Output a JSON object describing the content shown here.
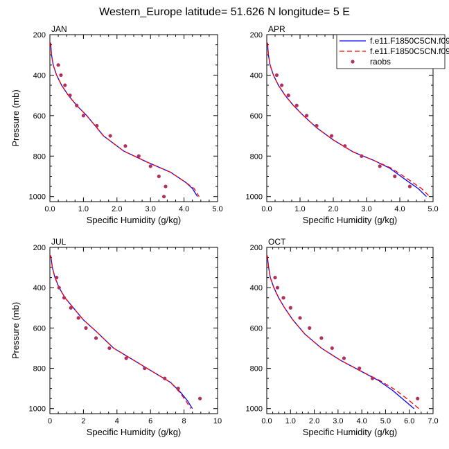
{
  "figure": {
    "title": "Western_Europe  latitude= 51.626 N longitude= 5 E"
  },
  "legend": {
    "entries": [
      {
        "name": "f.e11.F1850C5CN.f09",
        "color": "#0000ff",
        "dash": "solid",
        "marker": "none"
      },
      {
        "name": "f.e11.F1850C5CN.f09",
        "color": "#ff0000",
        "dash": "dashed",
        "marker": "none"
      },
      {
        "name": "raobs",
        "color": "#b03060",
        "dash": "none",
        "marker": "dot"
      }
    ]
  },
  "chart_data": [
    {
      "type": "line",
      "panel_label": "JAN",
      "xlabel": "Specific Humidity (g/kg)",
      "ylabel": "Pressure (mb)",
      "xlim": [
        0,
        5
      ],
      "ylim": [
        200,
        1025
      ],
      "y_inverted": true,
      "x_ticks": [
        "0.0",
        "1.0",
        "2.0",
        "3.0",
        "4.0",
        "5.0"
      ],
      "y_ticks": [
        "200",
        "400",
        "600",
        "800",
        "1000"
      ],
      "series": [
        {
          "color": "#0000ff",
          "dash": "solid",
          "x": [
            0.02,
            0.05,
            0.1,
            0.2,
            0.35,
            0.55,
            0.8,
            1.1,
            1.6,
            2.2,
            2.9,
            3.6,
            4.05,
            4.25,
            4.4
          ],
          "y": [
            240,
            300,
            350,
            400,
            450,
            500,
            550,
            600,
            700,
            775,
            830,
            880,
            930,
            960,
            1000
          ]
        },
        {
          "color": "#ff0000",
          "dash": "dashed",
          "x": [
            0.02,
            0.05,
            0.1,
            0.2,
            0.35,
            0.55,
            0.8,
            1.1,
            1.6,
            2.2,
            2.9,
            3.6,
            4.05,
            4.3,
            4.45
          ],
          "y": [
            240,
            300,
            350,
            400,
            450,
            500,
            550,
            600,
            700,
            775,
            830,
            880,
            930,
            960,
            1000
          ]
        },
        {
          "color": "#b03060",
          "dash": "none",
          "marker": "dot",
          "x": [
            0.25,
            0.33,
            0.45,
            0.6,
            0.8,
            1.0,
            1.4,
            1.8,
            2.25,
            2.65,
            3.0,
            3.25,
            3.45,
            3.4
          ],
          "y": [
            350,
            400,
            450,
            500,
            550,
            600,
            650,
            700,
            750,
            800,
            850,
            900,
            950,
            1000
          ]
        }
      ]
    },
    {
      "type": "line",
      "panel_label": "APR",
      "xlabel": "Specific Humidity (g/kg)",
      "ylabel": "",
      "xlim": [
        0,
        5
      ],
      "ylim": [
        200,
        1025
      ],
      "y_inverted": true,
      "x_ticks": [
        "0.0",
        "1.0",
        "2.0",
        "3.0",
        "4.0",
        "5.0"
      ],
      "y_ticks": [
        "200",
        "400",
        "600",
        "800",
        "1000"
      ],
      "series": [
        {
          "color": "#0000ff",
          "dash": "solid",
          "x": [
            0.02,
            0.05,
            0.1,
            0.2,
            0.35,
            0.55,
            0.8,
            1.1,
            1.5,
            2.0,
            2.6,
            3.2,
            3.7,
            4.2,
            4.55,
            4.8
          ],
          "y": [
            240,
            300,
            350,
            400,
            450,
            500,
            550,
            600,
            660,
            720,
            780,
            820,
            860,
            920,
            960,
            1000
          ]
        },
        {
          "color": "#ff0000",
          "dash": "dashed",
          "x": [
            0.02,
            0.05,
            0.1,
            0.2,
            0.35,
            0.55,
            0.8,
            1.1,
            1.5,
            2.0,
            2.6,
            3.2,
            3.75,
            4.3,
            4.65,
            4.9
          ],
          "y": [
            240,
            300,
            350,
            400,
            450,
            500,
            550,
            600,
            660,
            720,
            780,
            820,
            860,
            920,
            960,
            1000
          ]
        },
        {
          "color": "#b03060",
          "dash": "none",
          "marker": "dot",
          "x": [
            0.3,
            0.45,
            0.65,
            0.9,
            1.2,
            1.5,
            1.95,
            2.35,
            2.85,
            3.4,
            3.85,
            4.3
          ],
          "y": [
            400,
            450,
            500,
            550,
            600,
            650,
            700,
            750,
            800,
            850,
            900,
            950
          ]
        }
      ]
    },
    {
      "type": "line",
      "panel_label": "JUL",
      "xlabel": "Specific Humidity (g/kg)",
      "ylabel": "Pressure (mb)",
      "xlim": [
        0,
        10
      ],
      "ylim": [
        200,
        1025
      ],
      "y_inverted": true,
      "x_ticks": [
        "0",
        "2",
        "4",
        "6",
        "8",
        "10"
      ],
      "y_ticks": [
        "200",
        "400",
        "600",
        "800",
        "1000"
      ],
      "series": [
        {
          "color": "#0000ff",
          "dash": "solid",
          "x": [
            0.05,
            0.15,
            0.3,
            0.55,
            0.9,
            1.4,
            2.0,
            2.8,
            3.8,
            5.0,
            6.2,
            7.2,
            7.8,
            8.2,
            8.5
          ],
          "y": [
            240,
            300,
            350,
            400,
            450,
            500,
            560,
            620,
            700,
            760,
            820,
            870,
            920,
            960,
            1000
          ]
        },
        {
          "color": "#ff0000",
          "dash": "dashed",
          "x": [
            0.05,
            0.15,
            0.3,
            0.55,
            0.9,
            1.4,
            2.0,
            2.8,
            3.8,
            5.0,
            6.2,
            7.2,
            7.75,
            8.1,
            8.4
          ],
          "y": [
            240,
            300,
            350,
            400,
            450,
            500,
            560,
            620,
            700,
            760,
            820,
            870,
            920,
            960,
            1000
          ]
        },
        {
          "color": "#b03060",
          "dash": "none",
          "marker": "dot",
          "x": [
            0.4,
            0.55,
            0.85,
            1.25,
            1.7,
            2.15,
            2.75,
            3.55,
            4.55,
            5.65,
            6.85,
            7.65,
            8.95
          ],
          "y": [
            350,
            400,
            450,
            500,
            550,
            600,
            650,
            700,
            750,
            800,
            850,
            900,
            950
          ]
        }
      ]
    },
    {
      "type": "line",
      "panel_label": "OCT",
      "xlabel": "Specific Humidity (g/kg)",
      "ylabel": "",
      "xlim": [
        0,
        7
      ],
      "ylim": [
        200,
        1025
      ],
      "y_inverted": true,
      "x_ticks": [
        "0.0",
        "1.0",
        "2.0",
        "3.0",
        "4.0",
        "5.0",
        "6.0",
        "7.0"
      ],
      "y_ticks": [
        "200",
        "400",
        "600",
        "800",
        "1000"
      ],
      "series": [
        {
          "color": "#0000ff",
          "dash": "solid",
          "x": [
            0.02,
            0.08,
            0.15,
            0.3,
            0.5,
            0.75,
            1.1,
            1.6,
            2.3,
            3.1,
            3.9,
            4.7,
            5.3,
            5.8,
            6.2
          ],
          "y": [
            240,
            300,
            350,
            400,
            450,
            500,
            560,
            630,
            700,
            760,
            810,
            860,
            910,
            960,
            1000
          ]
        },
        {
          "color": "#ff0000",
          "dash": "dashed",
          "x": [
            0.02,
            0.08,
            0.15,
            0.3,
            0.5,
            0.75,
            1.1,
            1.6,
            2.3,
            3.1,
            3.9,
            4.75,
            5.45,
            6.0,
            6.4
          ],
          "y": [
            240,
            300,
            350,
            400,
            450,
            500,
            560,
            630,
            700,
            760,
            810,
            860,
            910,
            960,
            1000
          ]
        },
        {
          "color": "#b03060",
          "dash": "none",
          "marker": "dot",
          "x": [
            0.35,
            0.45,
            0.7,
            1.0,
            1.4,
            1.8,
            2.3,
            2.75,
            3.25,
            3.9,
            4.45,
            6.35
          ],
          "y": [
            350,
            400,
            450,
            500,
            550,
            600,
            650,
            700,
            750,
            800,
            850,
            950
          ]
        }
      ]
    }
  ]
}
